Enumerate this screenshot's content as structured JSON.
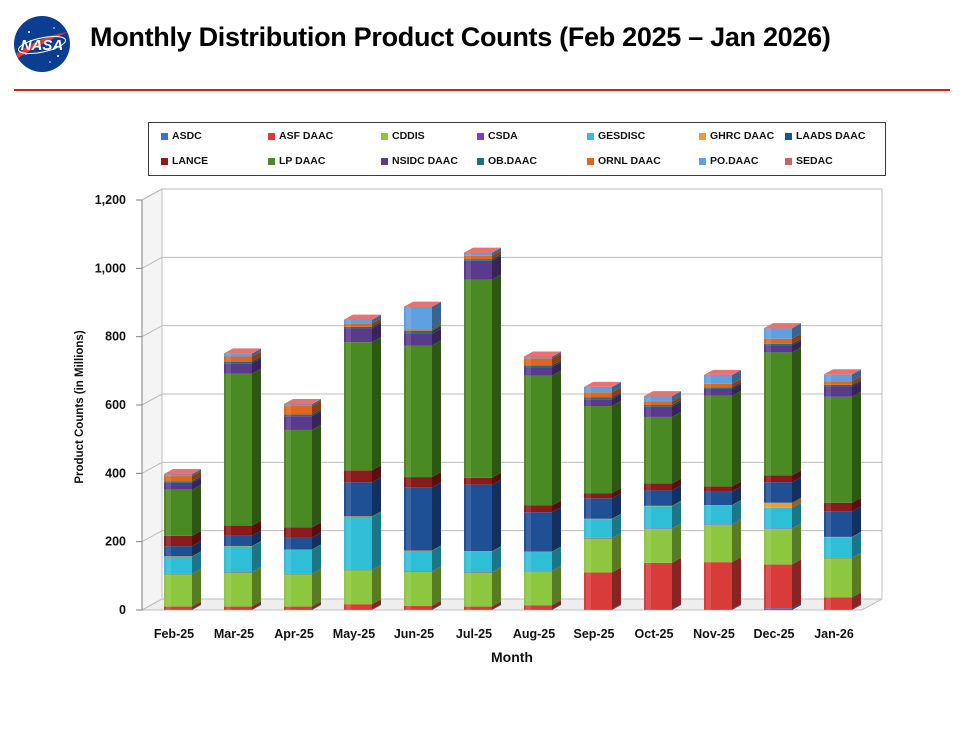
{
  "header": {
    "title": "Monthly Distribution Product Counts (Feb 2025 – Jan 2026)",
    "logo_text": "NASA"
  },
  "colors": {
    "rule": "#d42020"
  },
  "chart_data": {
    "type": "bar",
    "stacked": true,
    "title": "",
    "xlabel": "Month",
    "ylabel": "Product Counts (in Millions)",
    "ylim": [
      0,
      1200
    ],
    "yticks": [
      0,
      200,
      400,
      600,
      800,
      1000,
      1200
    ],
    "ytick_labels": [
      "0",
      "200",
      "400",
      "600",
      "800",
      "1,000",
      "1,200"
    ],
    "grid": true,
    "legend_position": "top",
    "categories": [
      "Feb-25",
      "Mar-25",
      "Apr-25",
      "May-25",
      "Jun-25",
      "Jul-25",
      "Aug-25",
      "Sep-25",
      "Oct-25",
      "Nov-25",
      "Dec-25",
      "Jan-26"
    ],
    "series": [
      {
        "name": "ASDC",
        "color": "#3f6fd0",
        "values": [
          2,
          2,
          2,
          2,
          2,
          2,
          2,
          2,
          2,
          2,
          5,
          2
        ]
      },
      {
        "name": "ASF DAAC",
        "color": "#d93b3b",
        "values": [
          8,
          8,
          8,
          15,
          10,
          8,
          12,
          108,
          136,
          138,
          128,
          35
        ]
      },
      {
        "name": "CDDIS",
        "color": "#8dc63f",
        "values": [
          95,
          100,
          95,
          100,
          100,
          100,
          100,
          100,
          100,
          110,
          105,
          115
        ]
      },
      {
        "name": "CSDA",
        "color": "#7b3fbf",
        "values": [
          1,
          1,
          1,
          1,
          1,
          1,
          1,
          1,
          1,
          1,
          1,
          1
        ]
      },
      {
        "name": "GESDISC",
        "color": "#2ebfd6",
        "values": [
          50,
          75,
          70,
          155,
          60,
          60,
          55,
          55,
          65,
          55,
          60,
          60
        ]
      },
      {
        "name": "GHRC DAAC",
        "color": "#f39a2c",
        "values": [
          1,
          1,
          1,
          1,
          1,
          1,
          1,
          1,
          1,
          1,
          15,
          1
        ]
      },
      {
        "name": "LAADS DAAC",
        "color": "#1f4f94",
        "values": [
          30,
          30,
          35,
          100,
          185,
          195,
          115,
          60,
          45,
          40,
          60,
          75
        ]
      },
      {
        "name": "LANCE",
        "color": "#8b1a1a",
        "values": [
          30,
          30,
          30,
          35,
          30,
          20,
          20,
          15,
          20,
          15,
          20,
          25
        ]
      },
      {
        "name": "LP DAAC",
        "color": "#4a8a22",
        "values": [
          135,
          445,
          285,
          375,
          385,
          580,
          380,
          255,
          195,
          265,
          360,
          310
        ]
      },
      {
        "name": "NSIDC DAAC",
        "color": "#5a3a8a",
        "values": [
          20,
          30,
          40,
          40,
          35,
          55,
          25,
          20,
          30,
          20,
          20,
          30
        ]
      },
      {
        "name": "OB.DAAC",
        "color": "#1b6f8a",
        "values": [
          5,
          5,
          5,
          5,
          8,
          5,
          5,
          5,
          5,
          5,
          5,
          5
        ]
      },
      {
        "name": "ORNL DAAC",
        "color": "#e0661a",
        "values": [
          15,
          15,
          25,
          10,
          5,
          10,
          20,
          15,
          10,
          10,
          15,
          10
        ]
      },
      {
        "name": "PO.DAAC",
        "color": "#5fa0e0",
        "values": [
          5,
          8,
          5,
          10,
          65,
          8,
          5,
          15,
          15,
          25,
          30,
          20
        ]
      },
      {
        "name": "SEDAC",
        "color": "#c86464",
        "values": [
          1,
          1,
          1,
          1,
          1,
          1,
          1,
          1,
          1,
          1,
          1,
          1
        ]
      }
    ]
  }
}
